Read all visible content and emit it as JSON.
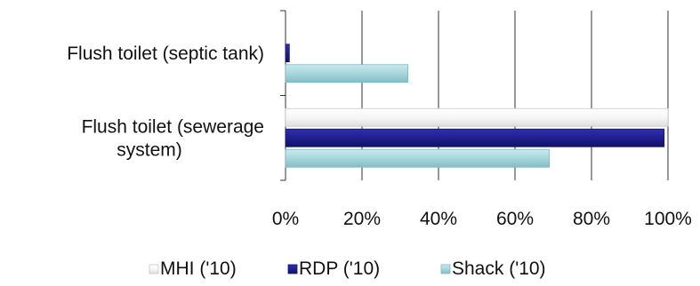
{
  "chart_data": {
    "type": "bar",
    "orientation": "horizontal",
    "categories": [
      "Flush toilet (septic tank)",
      "Flush toilet (sewerage system)"
    ],
    "category_label_lines": [
      [
        "Flush toilet (septic tank)"
      ],
      [
        "Flush toilet (sewerage",
        "system)"
      ]
    ],
    "series": [
      {
        "name": "MHI ('10)",
        "values": [
          0,
          100
        ],
        "color": "#f4f4f4",
        "edge": "#c8c8c8"
      },
      {
        "name": "RDP ('10)",
        "values": [
          1,
          99
        ],
        "color": "#1f1f8f",
        "edge": "#14146a"
      },
      {
        "name": "Shack ('10)",
        "values": [
          32,
          69
        ],
        "color": "#a6d6dc",
        "edge": "#80b8c0"
      }
    ],
    "xlim": [
      0,
      100
    ],
    "xticks": [
      0,
      20,
      40,
      60,
      80,
      100
    ],
    "xtick_labels": [
      "0%",
      "20%",
      "40%",
      "60%",
      "80%",
      "100%"
    ],
    "grid": true,
    "legend_position": "bottom",
    "title": "",
    "xlabel": "",
    "ylabel": ""
  }
}
